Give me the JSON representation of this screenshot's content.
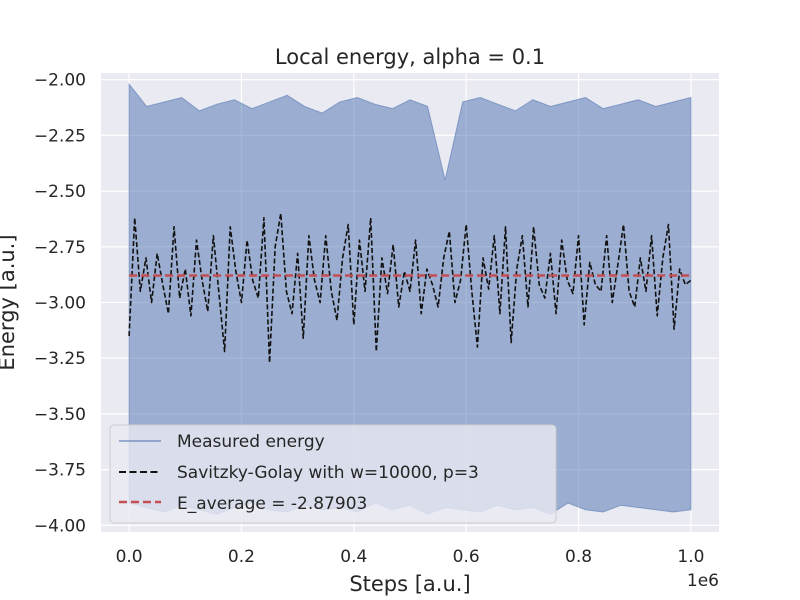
{
  "chart_data": {
    "type": "line",
    "title": "Local energy, alpha = 0.1",
    "xlabel": "Steps [a.u.]",
    "ylabel": "Energy [a.u.]",
    "x_offset_text": "1e6",
    "xlim": [
      -0.05,
      1.05
    ],
    "ylim": [
      -4.03,
      -1.97
    ],
    "xticks": [
      0.0,
      0.2,
      0.4,
      0.6,
      0.8,
      1.0
    ],
    "xtick_labels": [
      "0.0",
      "0.2",
      "0.4",
      "0.6",
      "0.8",
      "1.0"
    ],
    "yticks": [
      -2.0,
      -2.25,
      -2.5,
      -2.75,
      -3.0,
      -3.25,
      -3.5,
      -3.75,
      -4.0
    ],
    "ytick_labels": [
      "−2.00",
      "−2.25",
      "−2.50",
      "−2.75",
      "−3.00",
      "−3.25",
      "−3.50",
      "−3.75",
      "−4.00"
    ],
    "grid": true,
    "legend_position": "lower-left",
    "x_range": [
      0.0,
      1.0
    ],
    "series": [
      {
        "name": "Measured energy",
        "style": "filled band (dense noisy signal)",
        "color": "#4C72B0",
        "band_upper": [
          -2.02,
          -2.12,
          -2.1,
          -2.08,
          -2.14,
          -2.11,
          -2.09,
          -2.13,
          -2.1,
          -2.07,
          -2.12,
          -2.15,
          -2.1,
          -2.08,
          -2.11,
          -2.13,
          -2.09,
          -2.12,
          -2.45,
          -2.1,
          -2.08,
          -2.11,
          -2.14,
          -2.09,
          -2.12,
          -2.1,
          -2.08,
          -2.13,
          -2.11,
          -2.09,
          -2.12,
          -2.1,
          -2.08
        ],
        "band_lower": [
          -3.9,
          -3.92,
          -3.94,
          -3.91,
          -3.93,
          -3.95,
          -3.92,
          -3.9,
          -3.93,
          -3.94,
          -3.91,
          -3.93,
          -3.92,
          -3.94,
          -3.9,
          -3.93,
          -3.91,
          -3.95,
          -3.92,
          -3.93,
          -3.94,
          -3.91,
          -3.93,
          -3.92,
          -3.95,
          -3.9,
          -3.93,
          -3.94,
          -3.91,
          -3.92,
          -3.93,
          -3.94,
          -3.93
        ]
      },
      {
        "name": "Savitzky-Golay with w=10000, p=3",
        "style": "dashed",
        "color": "#111111",
        "x": [
          0.0,
          0.01,
          0.02,
          0.03,
          0.04,
          0.05,
          0.06,
          0.07,
          0.08,
          0.09,
          0.1,
          0.11,
          0.12,
          0.13,
          0.14,
          0.15,
          0.16,
          0.17,
          0.18,
          0.19,
          0.2,
          0.21,
          0.22,
          0.23,
          0.24,
          0.25,
          0.26,
          0.27,
          0.28,
          0.29,
          0.3,
          0.31,
          0.32,
          0.33,
          0.34,
          0.35,
          0.36,
          0.37,
          0.38,
          0.39,
          0.4,
          0.41,
          0.42,
          0.43,
          0.44,
          0.45,
          0.46,
          0.47,
          0.48,
          0.49,
          0.5,
          0.51,
          0.52,
          0.53,
          0.54,
          0.55,
          0.56,
          0.57,
          0.58,
          0.59,
          0.6,
          0.61,
          0.62,
          0.63,
          0.64,
          0.65,
          0.66,
          0.67,
          0.68,
          0.69,
          0.7,
          0.71,
          0.72,
          0.73,
          0.74,
          0.75,
          0.76,
          0.77,
          0.78,
          0.79,
          0.8,
          0.81,
          0.82,
          0.83,
          0.84,
          0.85,
          0.86,
          0.87,
          0.88,
          0.89,
          0.9,
          0.91,
          0.92,
          0.93,
          0.94,
          0.95,
          0.96,
          0.97,
          0.98,
          0.99,
          1.0
        ],
        "y": [
          -3.15,
          -2.62,
          -2.95,
          -2.8,
          -3.0,
          -2.78,
          -2.92,
          -3.05,
          -2.66,
          -2.98,
          -2.85,
          -3.06,
          -2.72,
          -2.9,
          -3.04,
          -2.7,
          -2.96,
          -3.22,
          -2.66,
          -2.86,
          -3.0,
          -2.72,
          -2.9,
          -2.98,
          -2.62,
          -3.27,
          -2.75,
          -2.6,
          -2.95,
          -3.05,
          -2.78,
          -3.16,
          -2.7,
          -2.9,
          -3.0,
          -2.7,
          -2.95,
          -3.08,
          -2.8,
          -2.65,
          -3.1,
          -2.72,
          -2.95,
          -2.62,
          -3.22,
          -2.8,
          -2.96,
          -2.74,
          -3.02,
          -2.86,
          -2.95,
          -2.72,
          -3.05,
          -2.85,
          -2.92,
          -3.02,
          -2.8,
          -2.68,
          -3.0,
          -2.9,
          -2.65,
          -2.95,
          -3.2,
          -2.8,
          -2.94,
          -2.7,
          -3.05,
          -2.66,
          -3.18,
          -2.85,
          -2.7,
          -3.02,
          -2.66,
          -2.92,
          -2.98,
          -2.78,
          -3.05,
          -2.72,
          -2.9,
          -2.96,
          -2.7,
          -3.1,
          -2.82,
          -2.92,
          -2.95,
          -2.7,
          -3.0,
          -2.83,
          -2.65,
          -2.95,
          -3.02,
          -2.8,
          -2.95,
          -2.7,
          -3.06,
          -2.8,
          -2.65,
          -3.12,
          -2.85,
          -2.92,
          -2.9
        ]
      },
      {
        "name": "E_average = -2.87903",
        "style": "dashed",
        "color": "#C44E52",
        "y_constant": -2.87903
      }
    ]
  }
}
